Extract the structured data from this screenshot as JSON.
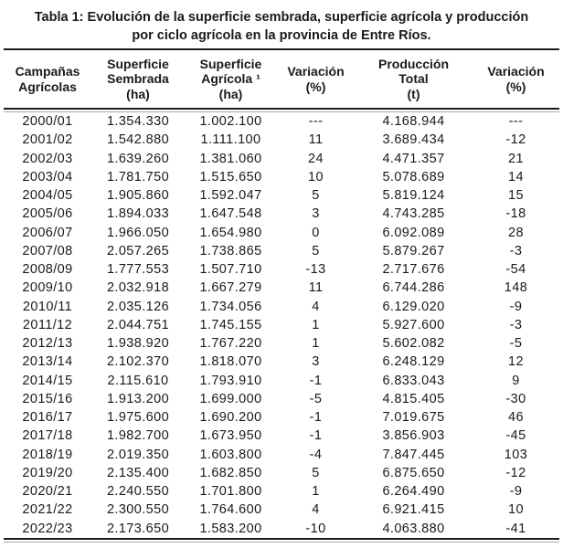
{
  "title": {
    "line1": "Tabla 1: Evolución de la superficie sembrada, superficie agrícola y producción",
    "line2": "por ciclo agrícola en la provincia de Entre Ríos."
  },
  "table": {
    "headers": [
      {
        "id": "campanas-agricolas",
        "lines": [
          "Campañas",
          "Agrícolas"
        ]
      },
      {
        "id": "superficie-sembrada",
        "lines": [
          "Superficie",
          "Sembrada",
          "(ha)"
        ]
      },
      {
        "id": "superficie-agricola",
        "lines": [
          "Superficie",
          "Agrícola ¹",
          "(ha)"
        ]
      },
      {
        "id": "variacion-superficie",
        "lines": [
          "Variación",
          "(%)"
        ]
      },
      {
        "id": "produccion-total",
        "lines": [
          "Producción",
          "Total",
          "(t)"
        ]
      },
      {
        "id": "variacion-produccion",
        "lines": [
          "Variación",
          "(%)"
        ]
      }
    ],
    "rows": [
      [
        "2000/01",
        "1.354.330",
        "1.002.100",
        "---",
        "4.168.944",
        "---"
      ],
      [
        "2001/02",
        "1.542.880",
        "1.111.100",
        "11",
        "3.689.434",
        "-12"
      ],
      [
        "2002/03",
        "1.639.260",
        "1.381.060",
        "24",
        "4.471.357",
        "21"
      ],
      [
        "2003/04",
        "1.781.750",
        "1.515.650",
        "10",
        "5.078.689",
        "14"
      ],
      [
        "2004/05",
        "1.905.860",
        "1.592.047",
        "5",
        "5.819.124",
        "15"
      ],
      [
        "2005/06",
        "1.894.033",
        "1.647.548",
        "3",
        "4.743.285",
        "-18"
      ],
      [
        "2006/07",
        "1.966.050",
        "1.654.980",
        "0",
        "6.092.089",
        "28"
      ],
      [
        "2007/08",
        "2.057.265",
        "1.738.865",
        "5",
        "5.879.267",
        "-3"
      ],
      [
        "2008/09",
        "1.777.553",
        "1.507.710",
        "-13",
        "2.717.676",
        "-54"
      ],
      [
        "2009/10",
        "2.032.918",
        "1.667.279",
        "11",
        "6.744.286",
        "148"
      ],
      [
        "2010/11",
        "2.035.126",
        "1.734.056",
        "4",
        "6.129.020",
        "-9"
      ],
      [
        "2011/12",
        "2.044.751",
        "1.745.155",
        "1",
        "5.927.600",
        "-3"
      ],
      [
        "2012/13",
        "1.938.920",
        "1.767.220",
        "1",
        "5.602.082",
        "-5"
      ],
      [
        "2013/14",
        "2.102.370",
        "1.818.070",
        "3",
        "6.248.129",
        "12"
      ],
      [
        "2014/15",
        "2.115.610",
        "1.793.910",
        "-1",
        "6.833.043",
        "9"
      ],
      [
        "2015/16",
        "1.913.200",
        "1.699.000",
        "-5",
        "4.815.405",
        "-30"
      ],
      [
        "2016/17",
        "1.975.600",
        "1.690.200",
        "-1",
        "7.019.675",
        "46"
      ],
      [
        "2017/18",
        "1.982.700",
        "1.673.950",
        "-1",
        "3.856.903",
        "-45"
      ],
      [
        "2018/19",
        "2.019.350",
        "1.603.800",
        "-4",
        "7.847.445",
        "103"
      ],
      [
        "2019/20",
        "2.135.400",
        "1.682.850",
        "5",
        "6.875.650",
        "-12"
      ],
      [
        "2020/21",
        "2.240.550",
        "1.701.800",
        "1",
        "6.264.490",
        "-9"
      ],
      [
        "2021/22",
        "2.300.550",
        "1.764.600",
        "4",
        "6.921.415",
        "10"
      ],
      [
        "2022/23",
        "2.173.650",
        "1.583.200",
        "-10",
        "4.063.880",
        "-41"
      ]
    ]
  },
  "colors": {
    "text": "#1a1a1a",
    "rule_dark": "#1b1b1b",
    "rule_light": "#a6a6a6",
    "background": "#ffffff"
  }
}
